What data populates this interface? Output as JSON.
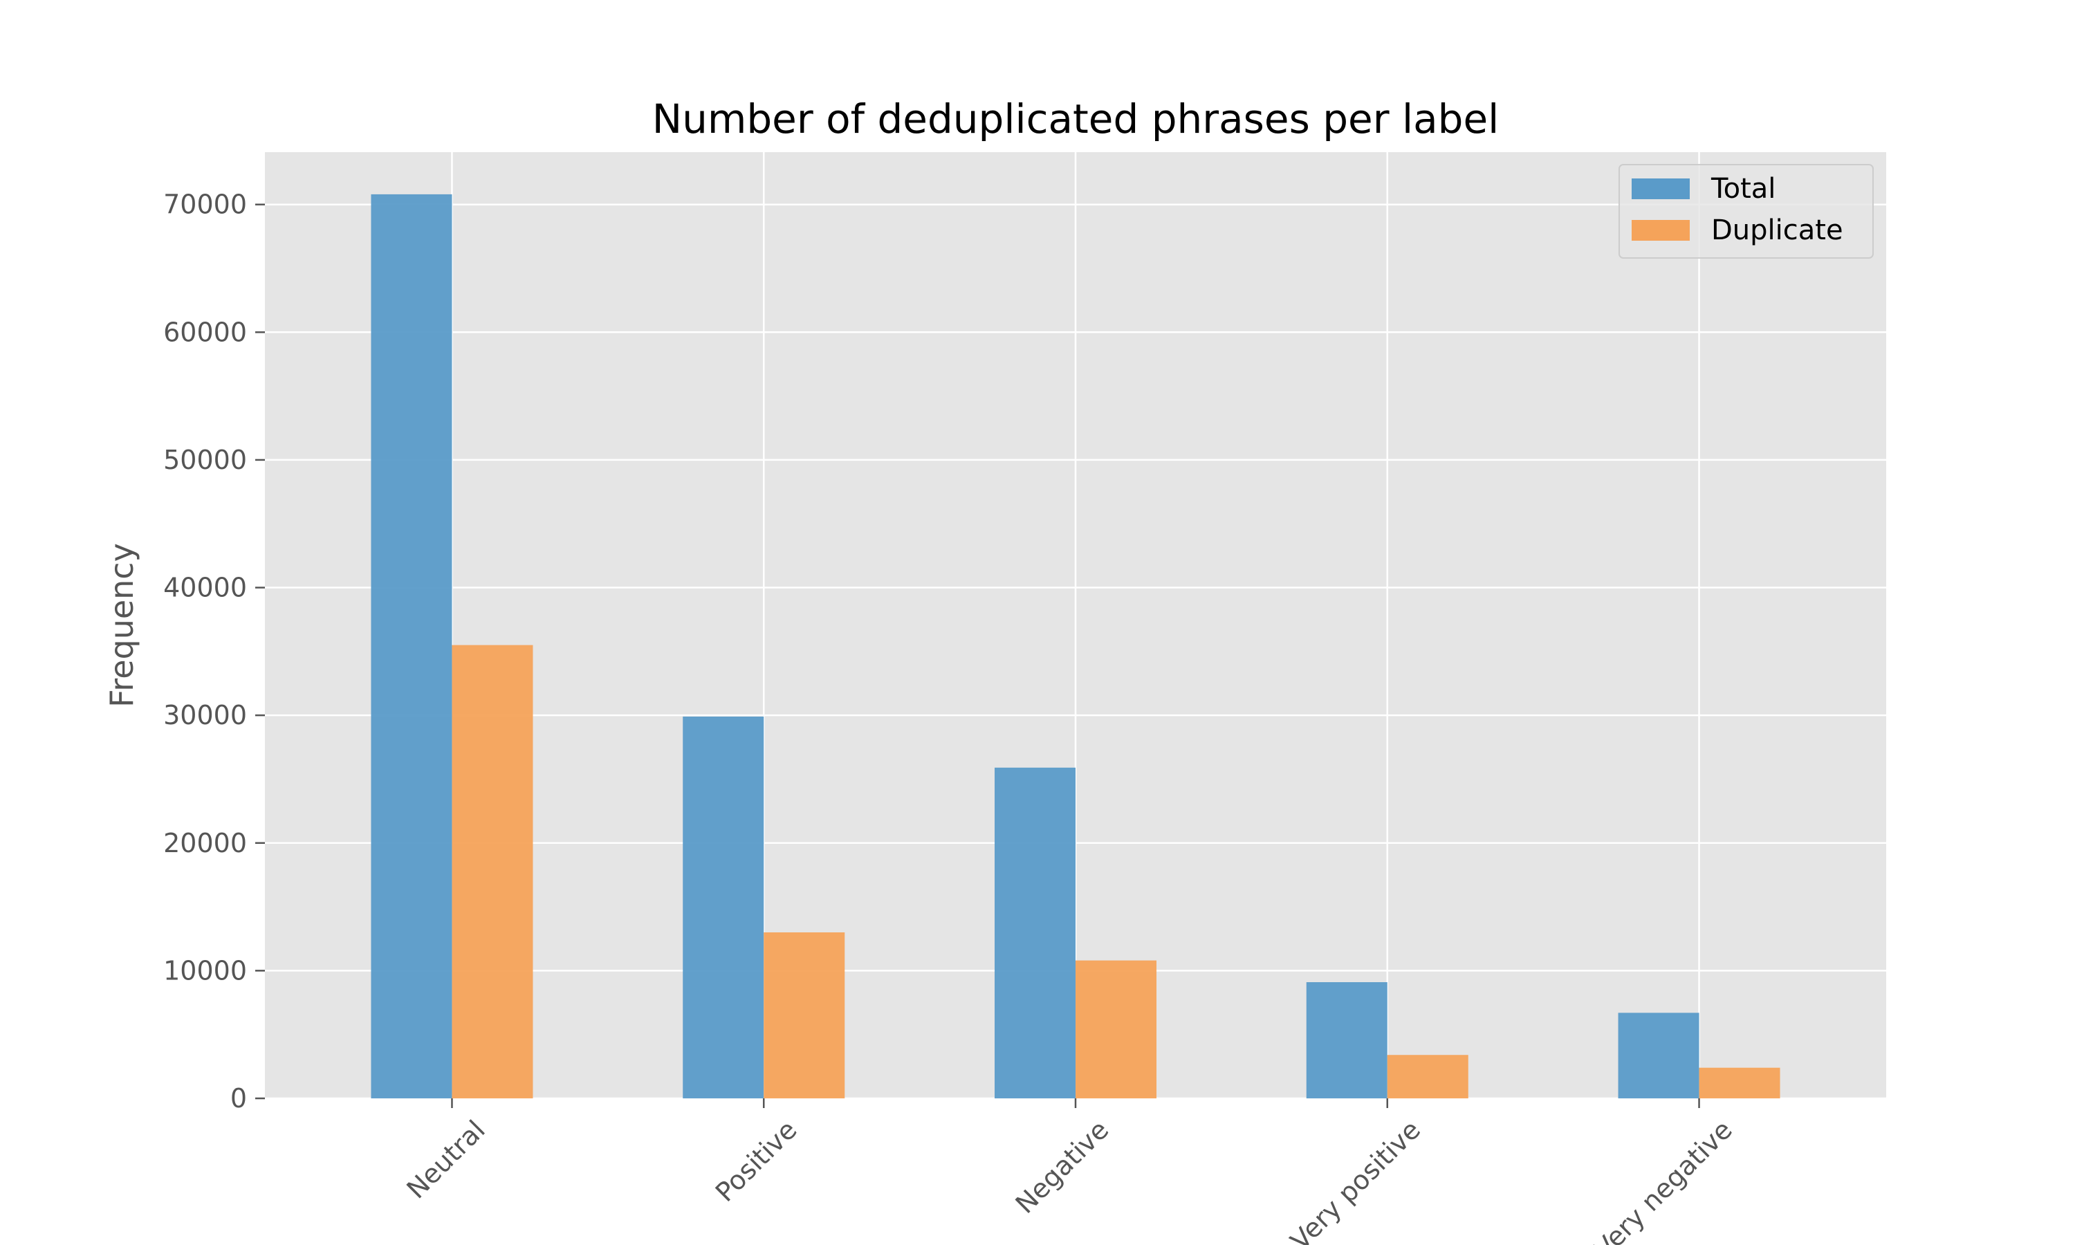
{
  "chart_data": {
    "type": "bar",
    "title": "Number of deduplicated phrases per label",
    "xlabel": "",
    "ylabel": "Frequency",
    "categories": [
      "Neutral",
      "Positive",
      "Negative",
      "Very positive",
      "Very negative"
    ],
    "series": [
      {
        "name": "Total",
        "color": "#5a9bc9",
        "values": [
          70800,
          29900,
          25900,
          9100,
          6700
        ]
      },
      {
        "name": "Duplicate",
        "color": "#f5a35a",
        "values": [
          35500,
          13000,
          10800,
          3400,
          2400
        ]
      }
    ],
    "ylim": [
      0,
      74100
    ],
    "yticks": [
      0,
      10000,
      20000,
      30000,
      40000,
      50000,
      60000,
      70000
    ],
    "grid": true,
    "legend_position": "top-right",
    "background": "#e5e5e5",
    "grid_color": "#ffffff"
  }
}
